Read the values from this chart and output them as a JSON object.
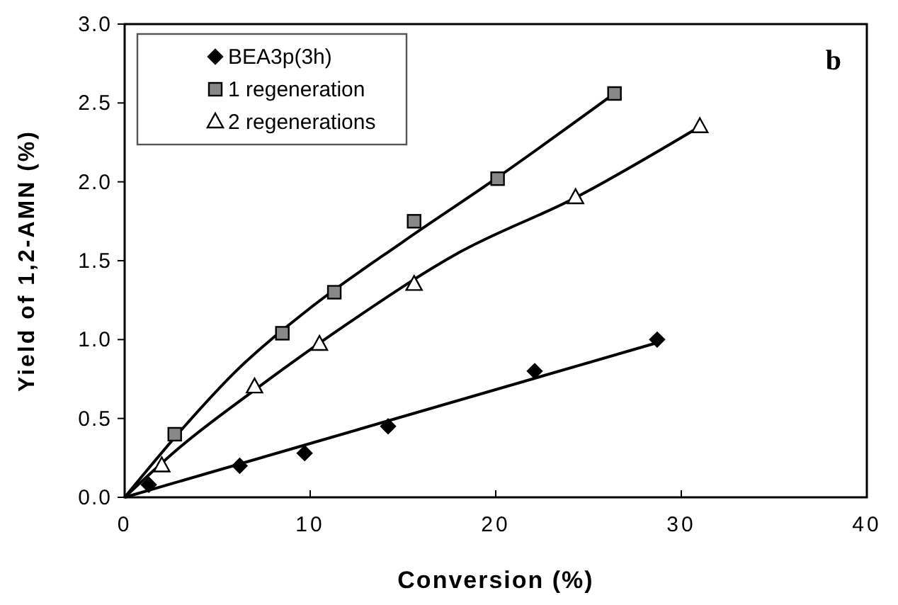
{
  "chart_data": {
    "type": "scatter",
    "xlabel": "Conversion (%)",
    "ylabel": "Yield of 1,2-AMN (%)",
    "annotations": [
      "b"
    ],
    "xlim": [
      0,
      40
    ],
    "xticks": [
      0,
      10,
      20,
      30,
      40
    ],
    "ylim": [
      0,
      3
    ],
    "yticks": [
      {
        "value": 0,
        "label": "0.0"
      },
      {
        "value": 0.5,
        "label": "0.5"
      },
      {
        "value": 1,
        "label": "1.0"
      },
      {
        "value": 1.5,
        "label": "1.5"
      },
      {
        "value": 2,
        "label": "2.0"
      },
      {
        "value": 2.5,
        "label": "2.5"
      },
      {
        "value": 3,
        "label": "3.0"
      }
    ],
    "legend": "top left",
    "grid": false,
    "series": [
      {
        "name": "BEA3p(3h)",
        "marker": "diamond",
        "color": "#000000",
        "x": [
          1.3,
          6.2,
          9.7,
          14.2,
          22.1,
          28.7
        ],
        "values": [
          0.08,
          0.2,
          0.28,
          0.45,
          0.8,
          1.0
        ]
      },
      {
        "name": "1 regeneration",
        "marker": "square",
        "color": "#888888",
        "x": [
          2.7,
          8.5,
          11.3,
          15.6,
          20.1,
          26.4
        ],
        "values": [
          0.4,
          1.04,
          1.3,
          1.75,
          2.02,
          2.56
        ]
      },
      {
        "name": "2 regenerations",
        "marker": "triangle",
        "color": "#ffffff",
        "x": [
          2.0,
          7.0,
          10.5,
          15.6,
          24.3,
          31.0
        ],
        "values": [
          0.2,
          0.7,
          0.97,
          1.35,
          1.9,
          2.35
        ]
      },
      {
        "type": "line",
        "color": "#000000",
        "x": [
          0,
          28.7
        ],
        "values": [
          0,
          0.98
        ]
      },
      {
        "type": "line",
        "color": "#000000",
        "x": [
          0,
          3,
          6,
          10,
          15,
          20,
          26.4
        ],
        "values": [
          0,
          0.42,
          0.8,
          1.2,
          1.62,
          2.02,
          2.56
        ]
      },
      {
        "type": "line",
        "color": "#000000",
        "x": [
          0,
          3,
          7,
          12,
          18,
          24.3,
          31
        ],
        "values": [
          0,
          0.32,
          0.68,
          1.1,
          1.55,
          1.9,
          2.35
        ]
      }
    ]
  }
}
